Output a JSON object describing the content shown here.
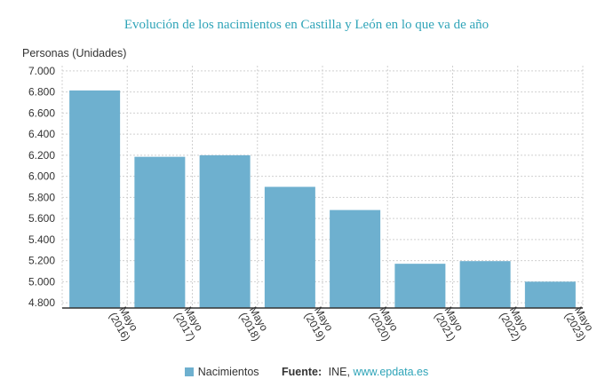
{
  "chart_data": {
    "type": "bar",
    "title": "Evolución de los nacimientos en Castilla y León en lo que va de año",
    "ylabel": "Personas (Unidades)",
    "xlabel": "",
    "categories": [
      "Mayo\n(2016)",
      "Mayo\n(2017)",
      "Mayo\n(2018)",
      "Mayo\n(2019)",
      "Mayo\n(2020)",
      "Mayo\n(2021)",
      "Mayo\n(2022)",
      "Mayo\n(2023)"
    ],
    "series": [
      {
        "name": "Nacimientos",
        "values": [
          6815,
          6185,
          6200,
          5900,
          5680,
          5170,
          5195,
          5000
        ],
        "color": "#6eb0cf"
      }
    ],
    "ylim": [
      4750,
      7050
    ],
    "yticks": [
      4800,
      5000,
      5200,
      5400,
      5600,
      5800,
      6000,
      6200,
      6400,
      6600,
      6800,
      7000
    ],
    "ytick_labels": [
      "4.800",
      "5.000",
      "5.200",
      "5.400",
      "5.600",
      "5.800",
      "6.000",
      "6.200",
      "6.400",
      "6.600",
      "6.800",
      "7.000"
    ],
    "grid": true,
    "legend": "bottom"
  },
  "source": {
    "label": "Fuente:",
    "name": "INE,",
    "link": "www.epdata.es"
  },
  "colors": {
    "title": "#2fa4b8",
    "bar": "#6eb0cf",
    "grid": "#d0d0d0",
    "axis": "#333333"
  }
}
